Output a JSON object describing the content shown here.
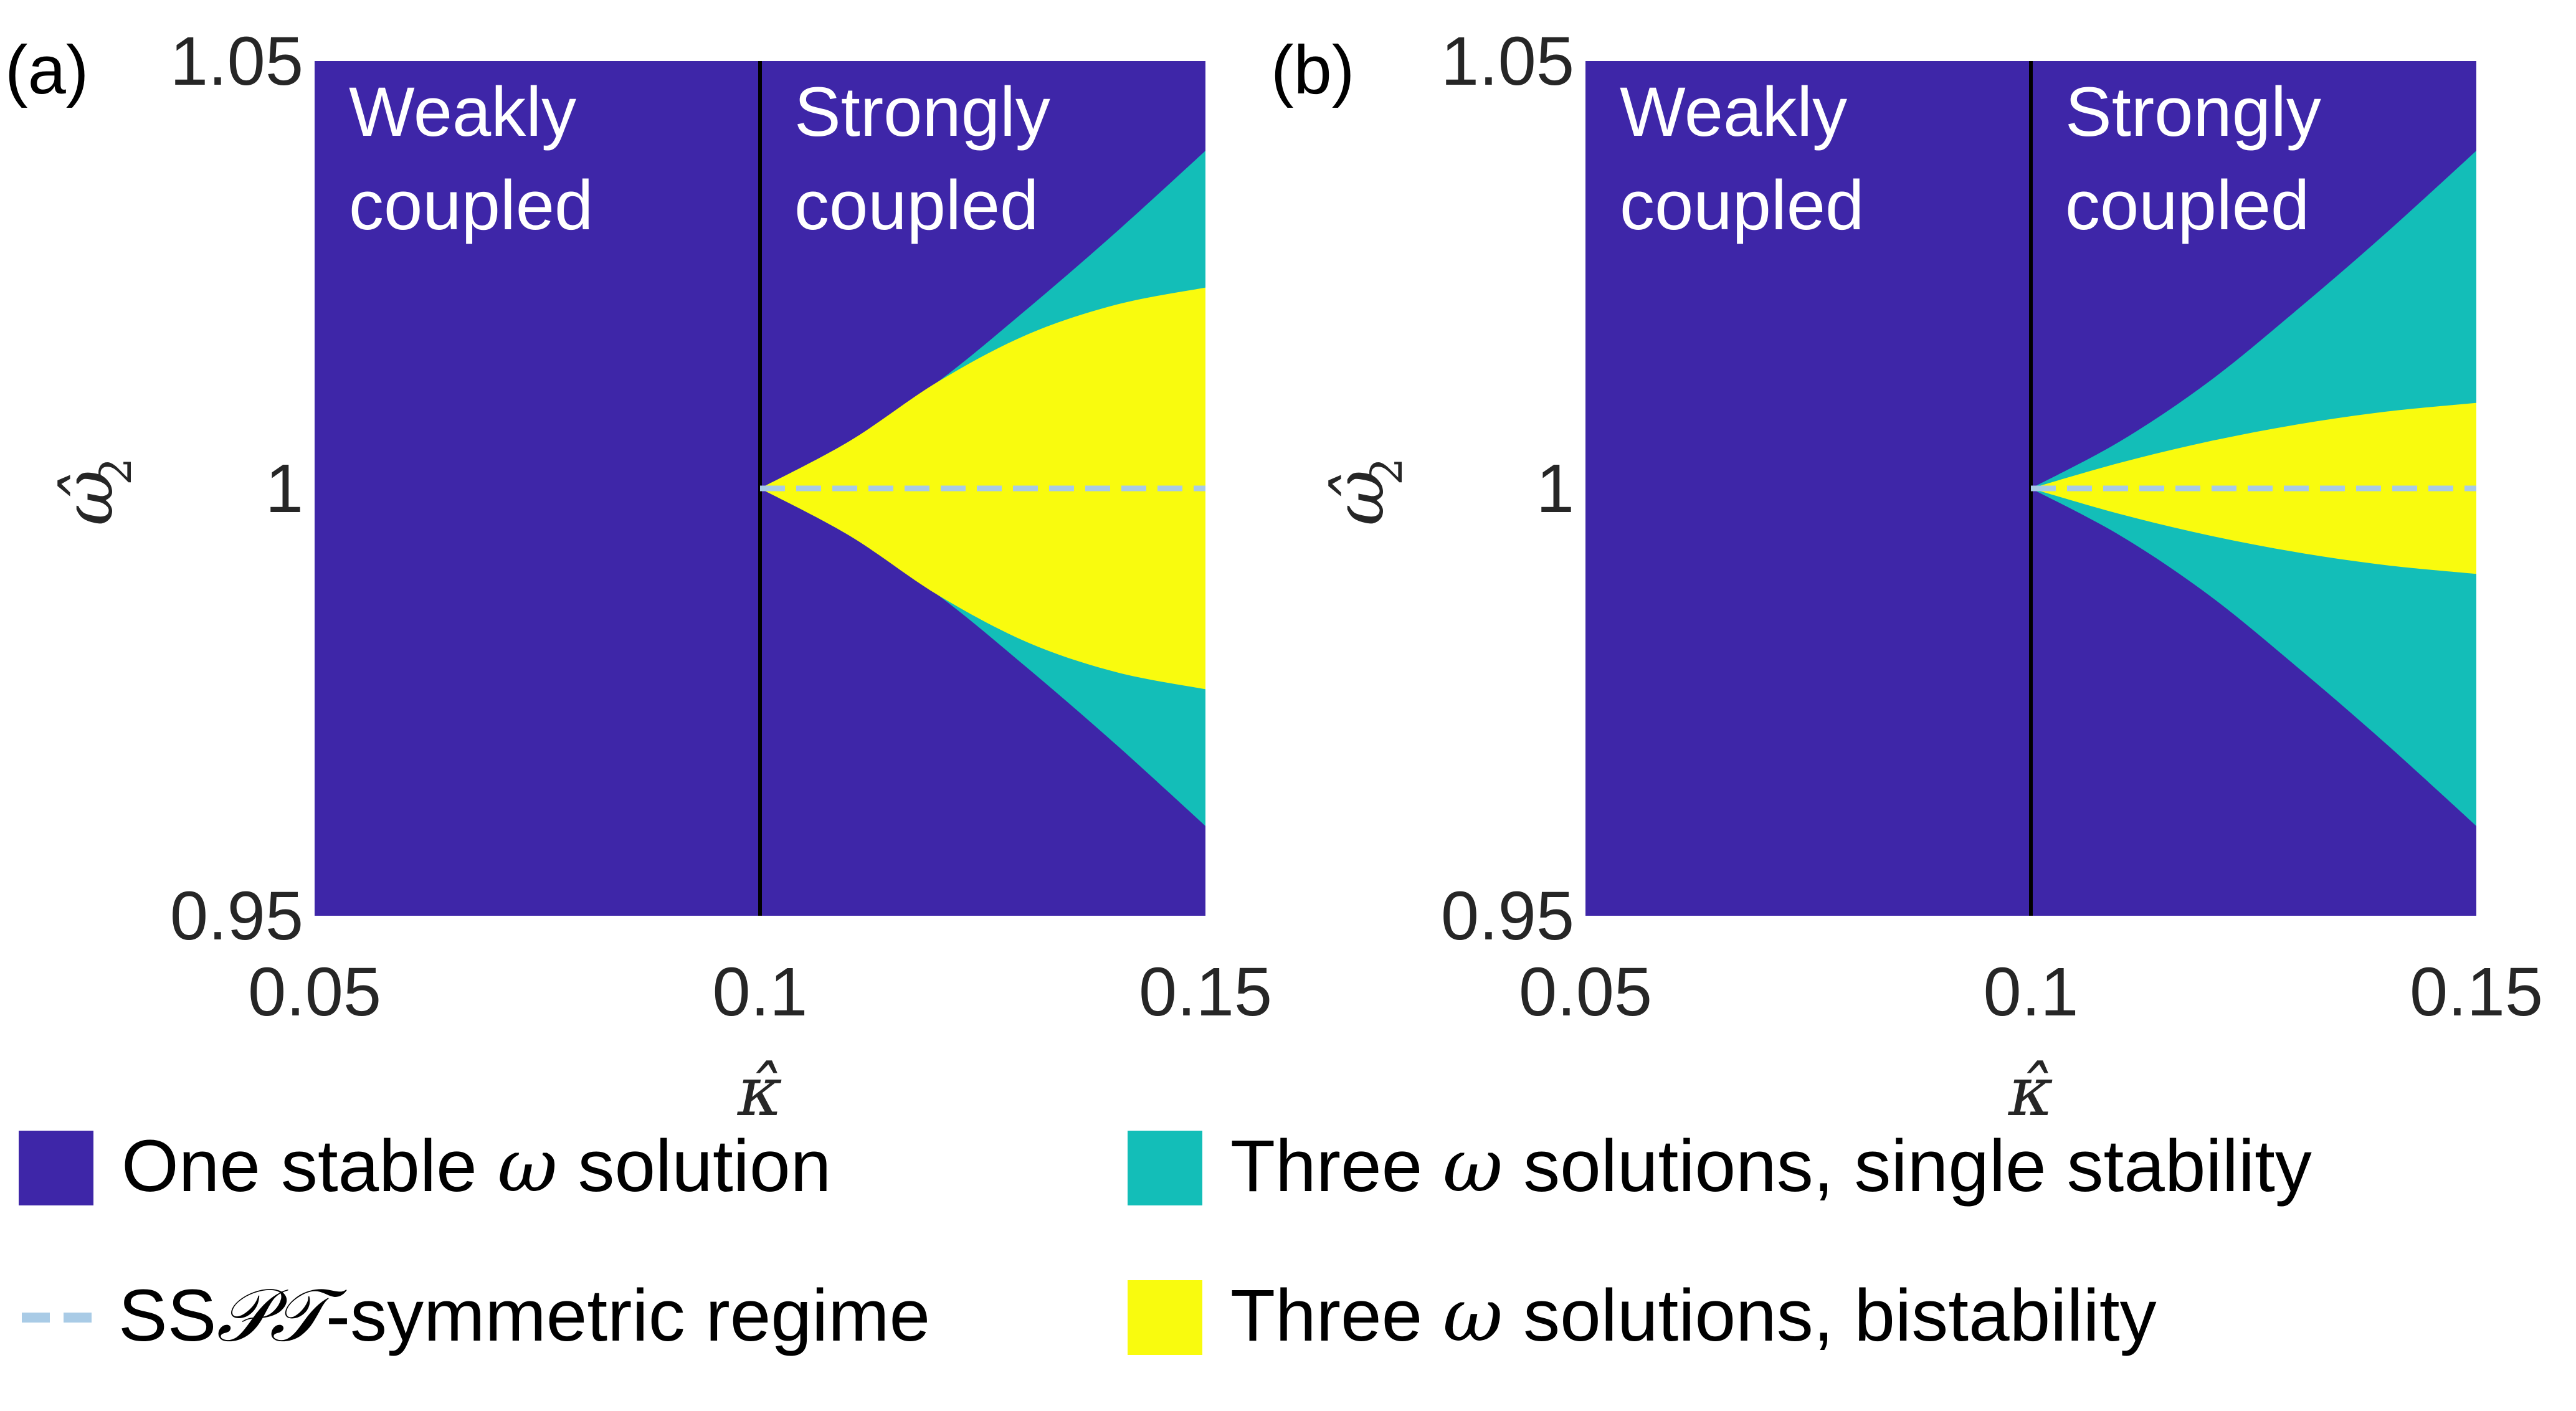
{
  "figure": {
    "legend": {
      "items": [
        {
          "pre": "One stable ",
          "math": "ω",
          "post": " solution",
          "color": "#3e26a8",
          "kind": "box"
        },
        {
          "pre": "Three ",
          "math": "ω",
          "post": " solutions, single stability",
          "color": "#13beb8",
          "kind": "box"
        },
        {
          "pre": "SS",
          "math": "𝒫𝒯",
          "post": "-symmetric regime",
          "color": "#a9cbe6",
          "kind": "dash"
        },
        {
          "pre": "Three ",
          "math": "ω",
          "post": " solutions, bistability",
          "color": "#f9fb0e",
          "kind": "box"
        }
      ]
    }
  },
  "chart_data": [
    {
      "type": "heatmap",
      "panel_label": "(a)",
      "xlabel": "κ̂",
      "ylabel": {
        "base": "ω̂",
        "sub": "2"
      },
      "xlim": [
        0.05,
        0.15
      ],
      "ylim": [
        0.95,
        1.05
      ],
      "xticks": [
        "0.05",
        "0.1",
        "0.15"
      ],
      "yticks": [
        "0.95",
        "1",
        "1.05"
      ],
      "regions_text": {
        "weak": [
          "Weakly",
          "coupled"
        ],
        "strong": [
          "Strongly",
          "coupled"
        ]
      },
      "divider_x": 0.1,
      "symmetric_line_y": 1.0,
      "colors": {
        "one_stable": "#3e26a8",
        "single_stability": "#13beb8",
        "bistability": "#f9fb0e",
        "divider": "#000000",
        "symmetric_line": "#a9cbe6"
      },
      "boundaries": {
        "kappa": [
          0.1,
          0.11,
          0.12,
          0.13,
          0.14,
          0.15
        ],
        "three_solutions_upper": [
          1.0,
          1.0055,
          1.0125,
          1.021,
          1.03,
          1.0395
        ],
        "three_solutions_lower": [
          1.0,
          0.9945,
          0.9875,
          0.979,
          0.97,
          0.9605
        ],
        "bistability_upper": [
          1.0,
          1.0055,
          1.0125,
          1.018,
          1.0215,
          1.0235
        ],
        "bistability_lower": [
          1.0,
          0.9945,
          0.9875,
          0.982,
          0.9785,
          0.9765
        ]
      }
    },
    {
      "type": "heatmap",
      "panel_label": "(b)",
      "xlabel": "κ̂",
      "ylabel": {
        "base": "ω̂",
        "sub": "2"
      },
      "xlim": [
        0.05,
        0.15
      ],
      "ylim": [
        0.95,
        1.05
      ],
      "xticks": [
        "0.05",
        "0.1",
        "0.15"
      ],
      "yticks": [
        "0.95",
        "1",
        "1.05"
      ],
      "regions_text": {
        "weak": [
          "Weakly",
          "coupled"
        ],
        "strong": [
          "Strongly",
          "coupled"
        ]
      },
      "divider_x": 0.1,
      "symmetric_line_y": 1.0,
      "colors": {
        "one_stable": "#3e26a8",
        "single_stability": "#13beb8",
        "bistability": "#f9fb0e",
        "divider": "#000000",
        "symmetric_line": "#a9cbe6"
      },
      "boundaries": {
        "kappa": [
          0.1,
          0.11,
          0.12,
          0.13,
          0.14,
          0.15
        ],
        "three_solutions_upper": [
          1.0,
          1.0055,
          1.0125,
          1.021,
          1.03,
          1.0395
        ],
        "three_solutions_lower": [
          1.0,
          0.9945,
          0.9875,
          0.979,
          0.97,
          0.9605
        ],
        "bistability_upper": [
          1.0,
          1.003,
          1.0055,
          1.0075,
          1.009,
          1.01
        ],
        "bistability_lower": [
          1.0,
          0.997,
          0.9945,
          0.9925,
          0.991,
          0.99
        ]
      }
    }
  ]
}
